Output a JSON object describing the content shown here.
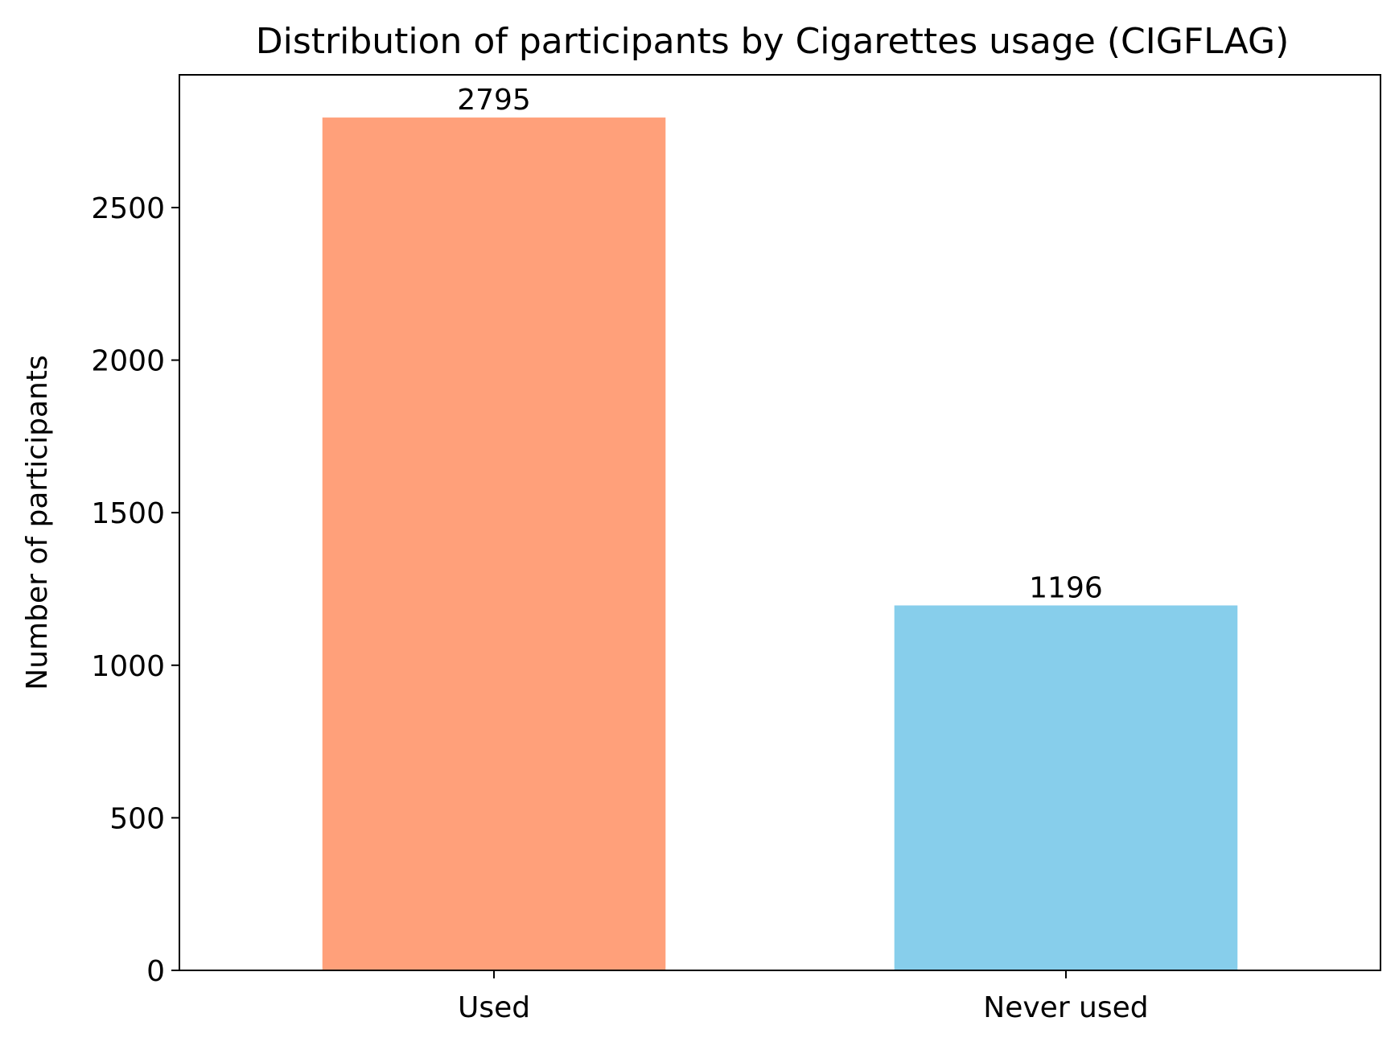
{
  "chart_data": {
    "type": "bar",
    "title": "Distribution of participants by Cigarettes usage (CIGFLAG)",
    "xlabel": "",
    "ylabel": "Number of participants",
    "categories": [
      "Used",
      "Never used"
    ],
    "values": [
      2795,
      1196
    ],
    "data_labels": [
      "2795",
      "1196"
    ],
    "colors": [
      "#FFA07A",
      "#87CEEB"
    ],
    "ylim": [
      0,
      2935
    ],
    "yticks": [
      0,
      500,
      1000,
      1500,
      2000,
      2500
    ],
    "ytick_labels": [
      "0",
      "500",
      "1000",
      "1500",
      "2000",
      "2500"
    ],
    "grid": false,
    "legend": "none"
  }
}
